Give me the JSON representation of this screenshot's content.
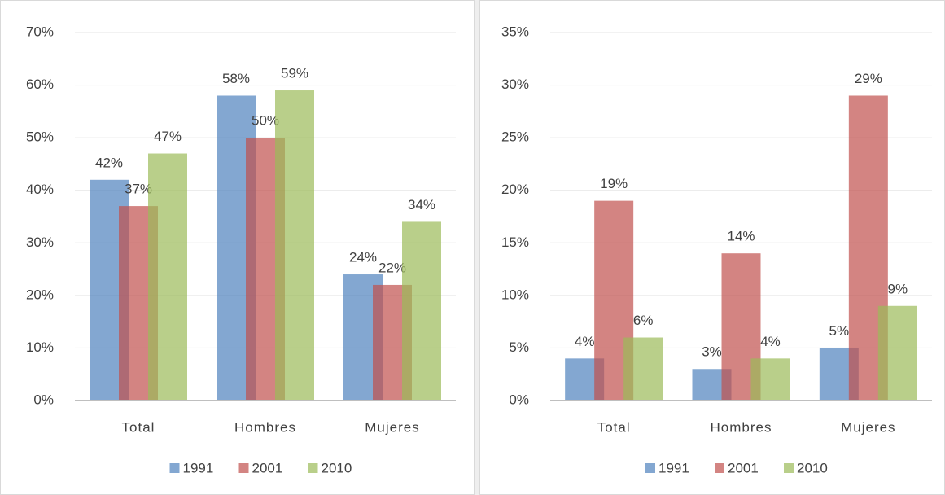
{
  "chart_data": [
    {
      "type": "bar",
      "categories": [
        "Total",
        "Hombres",
        "Mujeres"
      ],
      "series": [
        {
          "name": "1991",
          "color": "#4f81bd",
          "values": [
            42,
            58,
            24
          ],
          "value_labels": [
            "42%",
            "58%",
            "24%"
          ]
        },
        {
          "name": "2001",
          "color": "#c0504d",
          "values": [
            37,
            50,
            22
          ],
          "value_labels": [
            "37%",
            "50%",
            "22%"
          ]
        },
        {
          "name": "2010",
          "color": "#9bbb59",
          "values": [
            47,
            59,
            34
          ],
          "value_labels": [
            "47%",
            "59%",
            "34%"
          ]
        }
      ],
      "ylim": [
        0,
        70
      ],
      "yticks": [
        {
          "value": 0,
          "label": "0%"
        },
        {
          "value": 10,
          "label": "10%"
        },
        {
          "value": 20,
          "label": "20%"
        },
        {
          "value": 30,
          "label": "30%"
        },
        {
          "value": 40,
          "label": "40%"
        },
        {
          "value": 50,
          "label": "50%"
        },
        {
          "value": 60,
          "label": "60%"
        },
        {
          "value": 70,
          "label": "70%"
        }
      ],
      "grid": true,
      "legend": "bottom"
    },
    {
      "type": "bar",
      "categories": [
        "Total",
        "Hombres",
        "Mujeres"
      ],
      "series": [
        {
          "name": "1991",
          "color": "#4f81bd",
          "values": [
            4,
            3,
            5
          ],
          "value_labels": [
            "4%",
            "3%",
            "5%"
          ]
        },
        {
          "name": "2001",
          "color": "#c0504d",
          "values": [
            19,
            14,
            29
          ],
          "value_labels": [
            "19%",
            "14%",
            "29%"
          ]
        },
        {
          "name": "2010",
          "color": "#9bbb59",
          "values": [
            6,
            4,
            9
          ],
          "value_labels": [
            "6%",
            "4%",
            "9%"
          ]
        }
      ],
      "ylim": [
        0,
        35
      ],
      "yticks": [
        {
          "value": 0,
          "label": "0%"
        },
        {
          "value": 5,
          "label": "5%"
        },
        {
          "value": 10,
          "label": "10%"
        },
        {
          "value": 15,
          "label": "15%"
        },
        {
          "value": 20,
          "label": "20%"
        },
        {
          "value": 25,
          "label": "25%"
        },
        {
          "value": 30,
          "label": "30%"
        },
        {
          "value": 35,
          "label": "35%"
        }
      ],
      "grid": true,
      "legend": "bottom"
    }
  ]
}
